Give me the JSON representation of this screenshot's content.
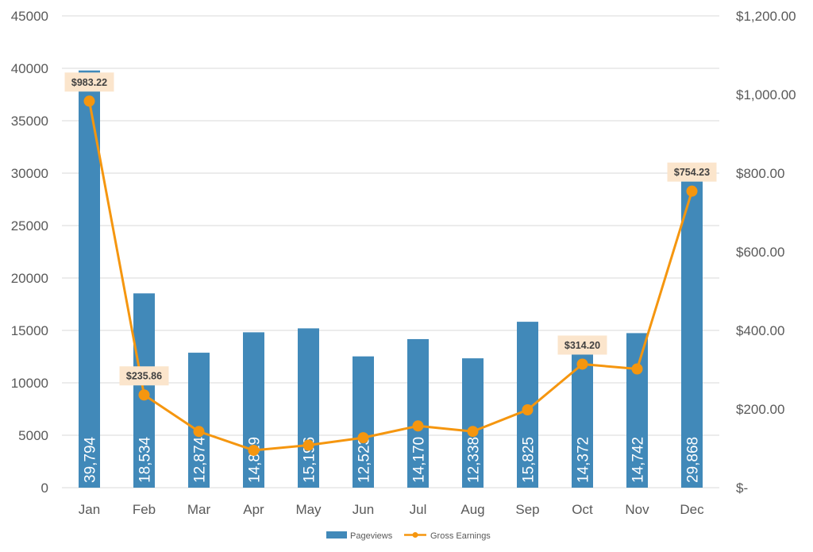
{
  "colors": {
    "bars": "#4189b9",
    "line": "#f5960f",
    "grid": "#d9d9d9",
    "callout_bg": "#fbe5cc",
    "axis_text": "#595959"
  },
  "chart_data": {
    "type": "bar",
    "categories": [
      "Jan",
      "Feb",
      "Mar",
      "Apr",
      "May",
      "Jun",
      "Jul",
      "Aug",
      "Sep",
      "Oct",
      "Nov",
      "Dec"
    ],
    "series": [
      {
        "name": "Pageviews",
        "type": "bar",
        "axis": "left",
        "values": [
          39794,
          18534,
          12874,
          14819,
          15196,
          12523,
          14170,
          12338,
          15825,
          14372,
          14742,
          29868
        ],
        "labels": [
          "39,794",
          "18,534",
          "12,874",
          "14,819",
          "15,196",
          "12,523",
          "14,170",
          "12,338",
          "15,825",
          "14,372",
          "14,742",
          "29,868"
        ]
      },
      {
        "name": "Gross Earnings",
        "type": "line",
        "axis": "right",
        "values": [
          983.22,
          235.86,
          143,
          95,
          108,
          127,
          157,
          143,
          198,
          314.2,
          302,
          754.23
        ],
        "callouts": [
          {
            "index": 0,
            "text": "$983.22"
          },
          {
            "index": 1,
            "text": "$235.86"
          },
          {
            "index": 9,
            "text": "$314.20"
          },
          {
            "index": 11,
            "text": "$754.23"
          }
        ]
      }
    ],
    "left_axis": {
      "ylim": [
        0,
        45000
      ],
      "ticks": [
        0,
        5000,
        10000,
        15000,
        20000,
        25000,
        30000,
        35000,
        40000,
        45000
      ],
      "tick_labels": [
        "0",
        "5000",
        "10000",
        "15000",
        "20000",
        "25000",
        "30000",
        "35000",
        "40000",
        "45000"
      ]
    },
    "right_axis": {
      "ylim": [
        0,
        1200
      ],
      "ticks": [
        0,
        200,
        400,
        600,
        800,
        1000,
        1200
      ],
      "tick_labels": [
        "$-",
        "$200.00",
        "$400.00",
        "$600.00",
        "$800.00",
        "$1,000.00",
        "$1,200.00"
      ]
    },
    "grid": true,
    "legend": {
      "position": "bottom",
      "entries": [
        "Pageviews",
        "Gross Earnings"
      ]
    }
  }
}
